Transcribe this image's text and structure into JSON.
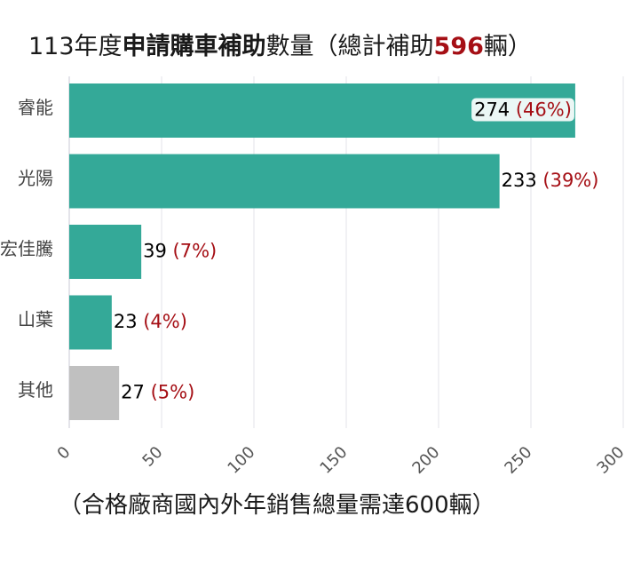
{
  "title": {
    "prefix": "113年度",
    "bold_part": "申請購車補助",
    "middle": "數量（總計補助",
    "total": "596",
    "suffix": "輛）"
  },
  "footnote": "（合格廠商國內外年銷售總量需達600輛）",
  "chart_data": {
    "type": "bar",
    "orientation": "horizontal",
    "title": "113年度申請購車補助數量（總計補助596輛）",
    "categories": [
      "睿能",
      "光陽",
      "宏佳騰",
      "山葉",
      "其他"
    ],
    "values": [
      274,
      233,
      39,
      23,
      27
    ],
    "labels": [
      "274",
      "233",
      "39",
      "23",
      "27"
    ],
    "percent_labels": [
      "(46%)",
      "(39%)",
      "(7%)",
      "(4%)",
      "(5%)"
    ],
    "bar_colors": [
      "#34a998",
      "#34a998",
      "#34a998",
      "#34a998",
      "#c0c0c0"
    ],
    "label_color": "#000000",
    "percent_color": "#a50f15",
    "xlim": [
      0,
      300
    ],
    "xticks": [
      0,
      50,
      100,
      150,
      200,
      250,
      300
    ],
    "grid": true
  }
}
